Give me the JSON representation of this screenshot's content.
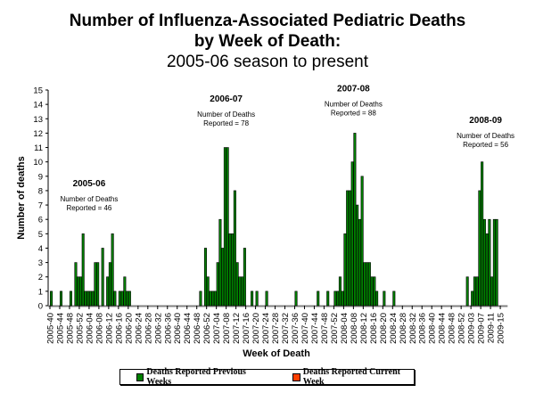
{
  "chart_data": {
    "type": "bar",
    "title": "Number of Influenza-Associated Pediatric Deaths",
    "title_line2": "by Week of Death:",
    "subtitle": "2005-06 season to present",
    "xlabel": "Week of Death",
    "ylabel": "Number of deaths",
    "ylim": [
      0,
      15
    ],
    "yticks": [
      0,
      1,
      2,
      3,
      4,
      5,
      6,
      7,
      8,
      9,
      10,
      11,
      12,
      13,
      14,
      15
    ],
    "grid": false,
    "legend_position": "bottom-center",
    "xticks": [
      "2005-40",
      "2005-44",
      "2005-48",
      "2005-52",
      "2006-04",
      "2006-08",
      "2006-12",
      "2006-16",
      "2006-20",
      "2006-24",
      "2006-28",
      "2006-32",
      "2006-36",
      "2006-40",
      "2006-44",
      "2006-48",
      "2006-52",
      "2007-04",
      "2007-08",
      "2007-12",
      "2007-16",
      "2007-20",
      "2007-24",
      "2007-28",
      "2007-32",
      "2007-36",
      "2007-40",
      "2007-44",
      "2007-48",
      "2007-52",
      "2008-04",
      "2008-08",
      "2008-12",
      "2008-16",
      "2008-20",
      "2008-24",
      "2008-28",
      "2008-32",
      "2008-36",
      "2008-40",
      "2008-44",
      "2008-48",
      "2008-52",
      "2009-03",
      "2009-07",
      "2009-11",
      "2009-15"
    ],
    "series": [
      {
        "name": "Deaths Reported Previous Weeks",
        "color": "#008000",
        "points": [
          {
            "week": "2005-40",
            "value": 1
          },
          {
            "week": "2005-44",
            "value": 1
          },
          {
            "week": "2005-48",
            "value": 1
          },
          {
            "week": "2005-50",
            "value": 3
          },
          {
            "week": "2005-51",
            "value": 2
          },
          {
            "week": "2005-52",
            "value": 2
          },
          {
            "week": "2006-01",
            "value": 5
          },
          {
            "week": "2006-02",
            "value": 1
          },
          {
            "week": "2006-03",
            "value": 1
          },
          {
            "week": "2006-04",
            "value": 1
          },
          {
            "week": "2006-05",
            "value": 1
          },
          {
            "week": "2006-06",
            "value": 3
          },
          {
            "week": "2006-07",
            "value": 3
          },
          {
            "week": "2006-09",
            "value": 4
          },
          {
            "week": "2006-11",
            "value": 2
          },
          {
            "week": "2006-12",
            "value": 3
          },
          {
            "week": "2006-13",
            "value": 5
          },
          {
            "week": "2006-14",
            "value": 1
          },
          {
            "week": "2006-16",
            "value": 1
          },
          {
            "week": "2006-17",
            "value": 1
          },
          {
            "week": "2006-18",
            "value": 2
          },
          {
            "week": "2006-19",
            "value": 1
          },
          {
            "week": "2006-20",
            "value": 1
          },
          {
            "week": "2006-49",
            "value": 1
          },
          {
            "week": "2006-51",
            "value": 4
          },
          {
            "week": "2006-52",
            "value": 2
          },
          {
            "week": "2007-01",
            "value": 1
          },
          {
            "week": "2007-02",
            "value": 1
          },
          {
            "week": "2007-03",
            "value": 1
          },
          {
            "week": "2007-04",
            "value": 3
          },
          {
            "week": "2007-05",
            "value": 6
          },
          {
            "week": "2007-06",
            "value": 4
          },
          {
            "week": "2007-07",
            "value": 11
          },
          {
            "week": "2007-08",
            "value": 11
          },
          {
            "week": "2007-09",
            "value": 5
          },
          {
            "week": "2007-10",
            "value": 5
          },
          {
            "week": "2007-11",
            "value": 8
          },
          {
            "week": "2007-12",
            "value": 3
          },
          {
            "week": "2007-13",
            "value": 2
          },
          {
            "week": "2007-14",
            "value": 2
          },
          {
            "week": "2007-15",
            "value": 4
          },
          {
            "week": "2007-18",
            "value": 1
          },
          {
            "week": "2007-20",
            "value": 1
          },
          {
            "week": "2007-24",
            "value": 1
          },
          {
            "week": "2007-36",
            "value": 1
          },
          {
            "week": "2007-45",
            "value": 1
          },
          {
            "week": "2007-49",
            "value": 1
          },
          {
            "week": "2007-52",
            "value": 1
          },
          {
            "week": "2008-01",
            "value": 1
          },
          {
            "week": "2008-02",
            "value": 2
          },
          {
            "week": "2008-03",
            "value": 1
          },
          {
            "week": "2008-04",
            "value": 5
          },
          {
            "week": "2008-05",
            "value": 8
          },
          {
            "week": "2008-06",
            "value": 8
          },
          {
            "week": "2008-07",
            "value": 10
          },
          {
            "week": "2008-08",
            "value": 12
          },
          {
            "week": "2008-09",
            "value": 7
          },
          {
            "week": "2008-10",
            "value": 6
          },
          {
            "week": "2008-11",
            "value": 9
          },
          {
            "week": "2008-12",
            "value": 3
          },
          {
            "week": "2008-13",
            "value": 3
          },
          {
            "week": "2008-14",
            "value": 3
          },
          {
            "week": "2008-15",
            "value": 2
          },
          {
            "week": "2008-16",
            "value": 2
          },
          {
            "week": "2008-17",
            "value": 1
          },
          {
            "week": "2008-20",
            "value": 1
          },
          {
            "week": "2008-24",
            "value": 1
          },
          {
            "week": "2009-01",
            "value": 2
          },
          {
            "week": "2009-03",
            "value": 1
          },
          {
            "week": "2009-04",
            "value": 2
          },
          {
            "week": "2009-05",
            "value": 2
          },
          {
            "week": "2009-06",
            "value": 8
          },
          {
            "week": "2009-07",
            "value": 10
          },
          {
            "week": "2009-08",
            "value": 6
          },
          {
            "week": "2009-09",
            "value": 5
          },
          {
            "week": "2009-10",
            "value": 6
          },
          {
            "week": "2009-11",
            "value": 2
          },
          {
            "week": "2009-12",
            "value": 6
          },
          {
            "week": "2009-13",
            "value": 6
          }
        ]
      },
      {
        "name": "Deaths Reported Current Week",
        "color": "#ff4000",
        "points": []
      }
    ],
    "annotations": [
      {
        "season": "2005-06",
        "text1": "Number of Deaths",
        "text2": "Reported = 46",
        "anchor_week": "2006-04",
        "anchor_value": 8.3
      },
      {
        "season": "2006-07",
        "text1": "Number of Deaths",
        "text2": "Reported = 78",
        "anchor_week": "2007-08",
        "anchor_value": 14.2
      },
      {
        "season": "2007-08",
        "text1": "Number of Deaths",
        "text2": "Reported = 88",
        "anchor_week": "2008-08",
        "anchor_value": 14.9
      },
      {
        "season": "2008-09",
        "text1": "Number of Deaths",
        "text2": "Reported = 56",
        "anchor_week": "2009-09",
        "anchor_value": 12.7
      }
    ]
  }
}
